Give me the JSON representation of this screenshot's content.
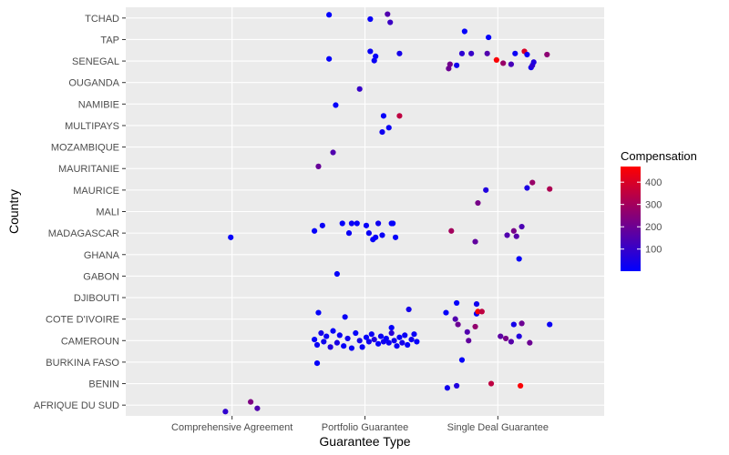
{
  "chart_data": {
    "type": "scatter",
    "xlabel": "Guarantee Type",
    "ylabel": "Country",
    "x_categories": [
      "Comprehensive Agreement",
      "Portfolio Guarantee",
      "Single Deal Guarantee"
    ],
    "y_categories": [
      "AFRIQUE DU SUD",
      "BENIN",
      "BURKINA FASO",
      "CAMEROUN",
      "COTE D'IVOIRE",
      "DJIBOUTI",
      "GABON",
      "GHANA",
      "MADAGASCAR",
      "MALI",
      "MAURICE",
      "MAURITANIE",
      "MOZAMBIQUE",
      "MULTIPAYS",
      "NAMIBIE",
      "OUGANDA",
      "SENEGAL",
      "TAP",
      "TCHAD"
    ],
    "jitter": true,
    "grid": true,
    "panel_background": "#ebebeb",
    "color_scale": {
      "title": "Compensation",
      "low_color": "#0000ff",
      "high_color": "#ff0000",
      "min": 1,
      "max": 470,
      "breaks": [
        100,
        200,
        300,
        400
      ]
    },
    "points": [
      {
        "x": "Portfolio Guarantee",
        "y": "TCHAD",
        "jx": -0.27,
        "jy": 0.15,
        "value": 5
      },
      {
        "x": "Portfolio Guarantee",
        "y": "TCHAD",
        "jx": 0.04,
        "jy": -0.05,
        "value": 15
      },
      {
        "x": "Portfolio Guarantee",
        "y": "TCHAD",
        "jx": 0.17,
        "jy": 0.18,
        "value": 150
      },
      {
        "x": "Portfolio Guarantee",
        "y": "TCHAD",
        "jx": 0.19,
        "jy": -0.2,
        "value": 110
      },
      {
        "x": "Single Deal Guarantee",
        "y": "TAP",
        "jx": -0.25,
        "jy": 0.38,
        "value": 10
      },
      {
        "x": "Single Deal Guarantee",
        "y": "TAP",
        "jx": -0.07,
        "jy": 0.1,
        "value": 10
      },
      {
        "x": "Portfolio Guarantee",
        "y": "SENEGAL",
        "jx": -0.27,
        "jy": 0.1,
        "value": 10
      },
      {
        "x": "Portfolio Guarantee",
        "y": "SENEGAL",
        "jx": 0.04,
        "jy": 0.45,
        "value": 20
      },
      {
        "x": "Portfolio Guarantee",
        "y": "SENEGAL",
        "jx": 0.08,
        "jy": 0.22,
        "value": 10
      },
      {
        "x": "Portfolio Guarantee",
        "y": "SENEGAL",
        "jx": 0.26,
        "jy": 0.35,
        "value": 40
      },
      {
        "x": "Portfolio Guarantee",
        "y": "SENEGAL",
        "jx": 0.07,
        "jy": 0.02,
        "value": 20
      },
      {
        "x": "Single Deal Guarantee",
        "y": "SENEGAL",
        "jx": -0.37,
        "jy": -0.35,
        "value": 200
      },
      {
        "x": "Single Deal Guarantee",
        "y": "SENEGAL",
        "jx": -0.36,
        "jy": -0.15,
        "value": 210
      },
      {
        "x": "Single Deal Guarantee",
        "y": "SENEGAL",
        "jx": -0.31,
        "jy": -0.2,
        "value": 30
      },
      {
        "x": "Single Deal Guarantee",
        "y": "SENEGAL",
        "jx": -0.27,
        "jy": 0.35,
        "value": 80
      },
      {
        "x": "Single Deal Guarantee",
        "y": "SENEGAL",
        "jx": -0.2,
        "jy": 0.35,
        "value": 100
      },
      {
        "x": "Single Deal Guarantee",
        "y": "SENEGAL",
        "jx": -0.08,
        "jy": 0.35,
        "value": 150
      },
      {
        "x": "Single Deal Guarantee",
        "y": "SENEGAL",
        "jx": -0.01,
        "jy": 0.05,
        "value": 460
      },
      {
        "x": "Single Deal Guarantee",
        "y": "SENEGAL",
        "jx": 0.04,
        "jy": -0.1,
        "value": 280
      },
      {
        "x": "Single Deal Guarantee",
        "y": "SENEGAL",
        "jx": 0.1,
        "jy": -0.15,
        "value": 130
      },
      {
        "x": "Single Deal Guarantee",
        "y": "SENEGAL",
        "jx": 0.13,
        "jy": 0.35,
        "value": 20
      },
      {
        "x": "Single Deal Guarantee",
        "y": "SENEGAL",
        "jx": 0.2,
        "jy": 0.45,
        "value": 400
      },
      {
        "x": "Single Deal Guarantee",
        "y": "SENEGAL",
        "jx": 0.22,
        "jy": 0.3,
        "value": 20
      },
      {
        "x": "Single Deal Guarantee",
        "y": "SENEGAL",
        "jx": 0.25,
        "jy": -0.3,
        "value": 40
      },
      {
        "x": "Single Deal Guarantee",
        "y": "SENEGAL",
        "jx": 0.26,
        "jy": -0.2,
        "value": 90
      },
      {
        "x": "Single Deal Guarantee",
        "y": "SENEGAL",
        "jx": 0.27,
        "jy": -0.05,
        "value": 60
      },
      {
        "x": "Single Deal Guarantee",
        "y": "SENEGAL",
        "jx": 0.37,
        "jy": 0.3,
        "value": 260
      },
      {
        "x": "Portfolio Guarantee",
        "y": "OUGANDA",
        "jx": -0.04,
        "jy": -0.3,
        "value": 100
      },
      {
        "x": "Portfolio Guarantee",
        "y": "NAMIBIE",
        "jx": -0.22,
        "jy": -0.05,
        "value": 10
      },
      {
        "x": "Portfolio Guarantee",
        "y": "MULTIPAYS",
        "jx": 0.14,
        "jy": 0.45,
        "value": 10
      },
      {
        "x": "Portfolio Guarantee",
        "y": "MULTIPAYS",
        "jx": 0.26,
        "jy": 0.45,
        "value": 350
      },
      {
        "x": "Portfolio Guarantee",
        "y": "MULTIPAYS",
        "jx": 0.18,
        "jy": -0.1,
        "value": 20
      },
      {
        "x": "Portfolio Guarantee",
        "y": "MULTIPAYS",
        "jx": 0.13,
        "jy": -0.3,
        "value": 30
      },
      {
        "x": "Portfolio Guarantee",
        "y": "MOZAMBIQUE",
        "jx": -0.24,
        "jy": -0.25,
        "value": 150
      },
      {
        "x": "Portfolio Guarantee",
        "y": "MAURITANIE",
        "jx": -0.35,
        "jy": 0.1,
        "value": 190
      },
      {
        "x": "Single Deal Guarantee",
        "y": "MAURICE",
        "jx": 0.26,
        "jy": 0.35,
        "value": 280
      },
      {
        "x": "Single Deal Guarantee",
        "y": "MAURICE",
        "jx": 0.22,
        "jy": 0.1,
        "value": 50
      },
      {
        "x": "Single Deal Guarantee",
        "y": "MAURICE",
        "jx": 0.39,
        "jy": 0.05,
        "value": 320
      },
      {
        "x": "Single Deal Guarantee",
        "y": "MAURICE",
        "jx": -0.09,
        "jy": 0.0,
        "value": 60
      },
      {
        "x": "Single Deal Guarantee",
        "y": "MALI",
        "jx": -0.15,
        "jy": 0.4,
        "value": 220
      },
      {
        "x": "Portfolio Guarantee",
        "y": "MADAGASCAR",
        "jx": -0.38,
        "jy": 0.1,
        "value": 10
      },
      {
        "x": "Portfolio Guarantee",
        "y": "MADAGASCAR",
        "jx": -0.32,
        "jy": 0.35,
        "value": 20
      },
      {
        "x": "Portfolio Guarantee",
        "y": "MADAGASCAR",
        "jx": -0.17,
        "jy": 0.45,
        "value": 10
      },
      {
        "x": "Portfolio Guarantee",
        "y": "MADAGASCAR",
        "jx": -0.1,
        "jy": 0.45,
        "value": 20
      },
      {
        "x": "Portfolio Guarantee",
        "y": "MADAGASCAR",
        "jx": -0.06,
        "jy": 0.45,
        "value": 10
      },
      {
        "x": "Portfolio Guarantee",
        "y": "MADAGASCAR",
        "jx": -0.12,
        "jy": 0.0,
        "value": 20
      },
      {
        "x": "Portfolio Guarantee",
        "y": "MADAGASCAR",
        "jx": 0.01,
        "jy": 0.35,
        "value": 10
      },
      {
        "x": "Portfolio Guarantee",
        "y": "MADAGASCAR",
        "jx": 0.1,
        "jy": 0.45,
        "value": 30
      },
      {
        "x": "Portfolio Guarantee",
        "y": "MADAGASCAR",
        "jx": 0.2,
        "jy": 0.45,
        "value": 10
      },
      {
        "x": "Portfolio Guarantee",
        "y": "MADAGASCAR",
        "jx": 0.21,
        "jy": 0.45,
        "value": 10
      },
      {
        "x": "Portfolio Guarantee",
        "y": "MADAGASCAR",
        "jx": 0.03,
        "jy": 0.0,
        "value": 20
      },
      {
        "x": "Portfolio Guarantee",
        "y": "MADAGASCAR",
        "jx": 0.08,
        "jy": -0.2,
        "value": 10
      },
      {
        "x": "Portfolio Guarantee",
        "y": "MADAGASCAR",
        "jx": 0.13,
        "jy": -0.1,
        "value": 20
      },
      {
        "x": "Portfolio Guarantee",
        "y": "MADAGASCAR",
        "jx": 0.23,
        "jy": -0.2,
        "value": 10
      },
      {
        "x": "Portfolio Guarantee",
        "y": "MADAGASCAR",
        "jx": 0.06,
        "jy": -0.3,
        "value": 10
      },
      {
        "x": "Comprehensive Agreement",
        "y": "MADAGASCAR",
        "jx": -0.01,
        "jy": -0.2,
        "value": 10
      },
      {
        "x": "Single Deal Guarantee",
        "y": "MADAGASCAR",
        "jx": -0.35,
        "jy": 0.1,
        "value": 300
      },
      {
        "x": "Single Deal Guarantee",
        "y": "MADAGASCAR",
        "jx": -0.17,
        "jy": -0.4,
        "value": 180
      },
      {
        "x": "Single Deal Guarantee",
        "y": "MADAGASCAR",
        "jx": 0.07,
        "jy": -0.1,
        "value": 150
      },
      {
        "x": "Single Deal Guarantee",
        "y": "MADAGASCAR",
        "jx": 0.12,
        "jy": 0.1,
        "value": 220
      },
      {
        "x": "Single Deal Guarantee",
        "y": "MADAGASCAR",
        "jx": 0.14,
        "jy": -0.15,
        "value": 160
      },
      {
        "x": "Single Deal Guarantee",
        "y": "MADAGASCAR",
        "jx": 0.18,
        "jy": 0.3,
        "value": 140
      },
      {
        "x": "Single Deal Guarantee",
        "y": "GHANA",
        "jx": 0.16,
        "jy": -0.2,
        "value": 10
      },
      {
        "x": "Portfolio Guarantee",
        "y": "GABON",
        "jx": -0.21,
        "jy": 0.1,
        "value": 10
      },
      {
        "x": "Single Deal Guarantee",
        "y": "DJIBOUTI",
        "jx": -0.31,
        "jy": -0.25,
        "value": 10
      },
      {
        "x": "Single Deal Guarantee",
        "y": "DJIBOUTI",
        "jx": -0.16,
        "jy": -0.3,
        "value": 30
      },
      {
        "x": "Single Deal Guarantee",
        "y": "COTE D'IVOIRE",
        "jx": -0.39,
        "jy": 0.3,
        "value": 10
      },
      {
        "x": "Single Deal Guarantee",
        "y": "COTE D'IVOIRE",
        "jx": -0.32,
        "jy": 0.0,
        "value": 150
      },
      {
        "x": "Single Deal Guarantee",
        "y": "COTE D'IVOIRE",
        "jx": -0.3,
        "jy": -0.25,
        "value": 200
      },
      {
        "x": "Single Deal Guarantee",
        "y": "COTE D'IVOIRE",
        "jx": -0.16,
        "jy": 0.25,
        "value": 10
      },
      {
        "x": "Single Deal Guarantee",
        "y": "COTE D'IVOIRE",
        "jx": -0.15,
        "jy": 0.35,
        "value": 460
      },
      {
        "x": "Single Deal Guarantee",
        "y": "COTE D'IVOIRE",
        "jx": -0.12,
        "jy": 0.35,
        "value": 350
      },
      {
        "x": "Single Deal Guarantee",
        "y": "COTE D'IVOIRE",
        "jx": -0.17,
        "jy": -0.35,
        "value": 270
      },
      {
        "x": "Single Deal Guarantee",
        "y": "COTE D'IVOIRE",
        "jx": 0.12,
        "jy": -0.25,
        "value": 40
      },
      {
        "x": "Single Deal Guarantee",
        "y": "COTE D'IVOIRE",
        "jx": 0.18,
        "jy": -0.2,
        "value": 200
      },
      {
        "x": "Single Deal Guarantee",
        "y": "COTE D'IVOIRE",
        "jx": 0.39,
        "jy": -0.25,
        "value": 20
      },
      {
        "x": "Portfolio Guarantee",
        "y": "COTE D'IVOIRE",
        "jx": -0.35,
        "jy": 0.3,
        "value": 10
      },
      {
        "x": "Portfolio Guarantee",
        "y": "COTE D'IVOIRE",
        "jx": -0.15,
        "jy": 0.1,
        "value": 20
      },
      {
        "x": "Portfolio Guarantee",
        "y": "COTE D'IVOIRE",
        "jx": 0.33,
        "jy": 0.45,
        "value": 40
      },
      {
        "x": "Portfolio Guarantee",
        "y": "COTE D'IVOIRE",
        "jx": 0.2,
        "jy": -0.4,
        "value": 10
      },
      {
        "x": "Portfolio Guarantee",
        "y": "CAMEROUN",
        "jx": -0.38,
        "jy": 0.05,
        "value": 10
      },
      {
        "x": "Portfolio Guarantee",
        "y": "CAMEROUN",
        "jx": -0.36,
        "jy": -0.2,
        "value": 20
      },
      {
        "x": "Portfolio Guarantee",
        "y": "CAMEROUN",
        "jx": -0.33,
        "jy": 0.35,
        "value": 40
      },
      {
        "x": "Portfolio Guarantee",
        "y": "CAMEROUN",
        "jx": -0.31,
        "jy": -0.05,
        "value": 30
      },
      {
        "x": "Portfolio Guarantee",
        "y": "CAMEROUN",
        "jx": -0.29,
        "jy": 0.2,
        "value": 20
      },
      {
        "x": "Portfolio Guarantee",
        "y": "CAMEROUN",
        "jx": -0.26,
        "jy": -0.3,
        "value": 60
      },
      {
        "x": "Portfolio Guarantee",
        "y": "CAMEROUN",
        "jx": -0.24,
        "jy": 0.45,
        "value": 10
      },
      {
        "x": "Portfolio Guarantee",
        "y": "CAMEROUN",
        "jx": -0.21,
        "jy": -0.1,
        "value": 50
      },
      {
        "x": "Portfolio Guarantee",
        "y": "CAMEROUN",
        "jx": -0.19,
        "jy": 0.25,
        "value": 20
      },
      {
        "x": "Portfolio Guarantee",
        "y": "CAMEROUN",
        "jx": -0.16,
        "jy": -0.25,
        "value": 10
      },
      {
        "x": "Portfolio Guarantee",
        "y": "CAMEROUN",
        "jx": -0.13,
        "jy": 0.1,
        "value": 30
      },
      {
        "x": "Portfolio Guarantee",
        "y": "CAMEROUN",
        "jx": -0.1,
        "jy": -0.35,
        "value": 20
      },
      {
        "x": "Portfolio Guarantee",
        "y": "CAMEROUN",
        "jx": -0.07,
        "jy": 0.35,
        "value": 10
      },
      {
        "x": "Portfolio Guarantee",
        "y": "CAMEROUN",
        "jx": -0.04,
        "jy": 0.0,
        "value": 40
      },
      {
        "x": "Portfolio Guarantee",
        "y": "CAMEROUN",
        "jx": -0.02,
        "jy": -0.3,
        "value": 20
      },
      {
        "x": "Portfolio Guarantee",
        "y": "CAMEROUN",
        "jx": 0.01,
        "jy": 0.15,
        "value": 10
      },
      {
        "x": "Portfolio Guarantee",
        "y": "CAMEROUN",
        "jx": 0.03,
        "jy": -0.05,
        "value": 30
      },
      {
        "x": "Portfolio Guarantee",
        "y": "CAMEROUN",
        "jx": 0.05,
        "jy": 0.3,
        "value": 20
      },
      {
        "x": "Portfolio Guarantee",
        "y": "CAMEROUN",
        "jx": 0.07,
        "jy": 0.05,
        "value": 60
      },
      {
        "x": "Portfolio Guarantee",
        "y": "CAMEROUN",
        "jx": 0.1,
        "jy": -0.15,
        "value": 10
      },
      {
        "x": "Portfolio Guarantee",
        "y": "CAMEROUN",
        "jx": 0.12,
        "jy": 0.2,
        "value": 20
      },
      {
        "x": "Portfolio Guarantee",
        "y": "CAMEROUN",
        "jx": 0.14,
        "jy": -0.05,
        "value": 30
      },
      {
        "x": "Portfolio Guarantee",
        "y": "CAMEROUN",
        "jx": 0.16,
        "jy": 0.1,
        "value": 10
      },
      {
        "x": "Portfolio Guarantee",
        "y": "CAMEROUN",
        "jx": 0.18,
        "jy": -0.1,
        "value": 20
      },
      {
        "x": "Portfolio Guarantee",
        "y": "CAMEROUN",
        "jx": 0.2,
        "jy": 0.35,
        "value": 70
      },
      {
        "x": "Portfolio Guarantee",
        "y": "CAMEROUN",
        "jx": 0.22,
        "jy": 0.0,
        "value": 30
      },
      {
        "x": "Portfolio Guarantee",
        "y": "CAMEROUN",
        "jx": 0.24,
        "jy": -0.25,
        "value": 20
      },
      {
        "x": "Portfolio Guarantee",
        "y": "CAMEROUN",
        "jx": 0.26,
        "jy": 0.15,
        "value": 10
      },
      {
        "x": "Portfolio Guarantee",
        "y": "CAMEROUN",
        "jx": 0.28,
        "jy": -0.1,
        "value": 40
      },
      {
        "x": "Portfolio Guarantee",
        "y": "CAMEROUN",
        "jx": 0.3,
        "jy": 0.25,
        "value": 20
      },
      {
        "x": "Portfolio Guarantee",
        "y": "CAMEROUN",
        "jx": 0.32,
        "jy": -0.2,
        "value": 10
      },
      {
        "x": "Portfolio Guarantee",
        "y": "CAMEROUN",
        "jx": 0.35,
        "jy": 0.05,
        "value": 30
      },
      {
        "x": "Portfolio Guarantee",
        "y": "CAMEROUN",
        "jx": 0.37,
        "jy": 0.3,
        "value": 20
      },
      {
        "x": "Portfolio Guarantee",
        "y": "CAMEROUN",
        "jx": 0.39,
        "jy": -0.05,
        "value": 10
      },
      {
        "x": "Single Deal Guarantee",
        "y": "CAMEROUN",
        "jx": -0.23,
        "jy": 0.4,
        "value": 150
      },
      {
        "x": "Single Deal Guarantee",
        "y": "CAMEROUN",
        "jx": -0.22,
        "jy": 0.0,
        "value": 180
      },
      {
        "x": "Single Deal Guarantee",
        "y": "CAMEROUN",
        "jx": 0.02,
        "jy": 0.2,
        "value": 170
      },
      {
        "x": "Single Deal Guarantee",
        "y": "CAMEROUN",
        "jx": 0.06,
        "jy": 0.1,
        "value": 220
      },
      {
        "x": "Single Deal Guarantee",
        "y": "CAMEROUN",
        "jx": 0.1,
        "jy": -0.05,
        "value": 160
      },
      {
        "x": "Single Deal Guarantee",
        "y": "CAMEROUN",
        "jx": 0.16,
        "jy": 0.2,
        "value": 60
      },
      {
        "x": "Single Deal Guarantee",
        "y": "CAMEROUN",
        "jx": 0.24,
        "jy": -0.1,
        "value": 200
      },
      {
        "x": "Single Deal Guarantee",
        "y": "BURKINA FASO",
        "jx": -0.27,
        "jy": 0.1,
        "value": 10
      },
      {
        "x": "Portfolio Guarantee",
        "y": "BURKINA FASO",
        "jx": -0.36,
        "jy": -0.05,
        "value": 10
      },
      {
        "x": "Single Deal Guarantee",
        "y": "BENIN",
        "jx": -0.38,
        "jy": -0.2,
        "value": 30
      },
      {
        "x": "Single Deal Guarantee",
        "y": "BENIN",
        "jx": -0.31,
        "jy": -0.1,
        "value": 60
      },
      {
        "x": "Single Deal Guarantee",
        "y": "BENIN",
        "jx": -0.05,
        "jy": 0.0,
        "value": 350
      },
      {
        "x": "Single Deal Guarantee",
        "y": "BENIN",
        "jx": 0.17,
        "jy": -0.1,
        "value": 460
      },
      {
        "x": "Comprehensive Agreement",
        "y": "AFRIQUE DU SUD",
        "jx": -0.05,
        "jy": -0.3,
        "value": 90
      },
      {
        "x": "Comprehensive Agreement",
        "y": "AFRIQUE DU SUD",
        "jx": 0.14,
        "jy": 0.15,
        "value": 230
      },
      {
        "x": "Comprehensive Agreement",
        "y": "AFRIQUE DU SUD",
        "jx": 0.19,
        "jy": -0.15,
        "value": 150
      }
    ]
  }
}
